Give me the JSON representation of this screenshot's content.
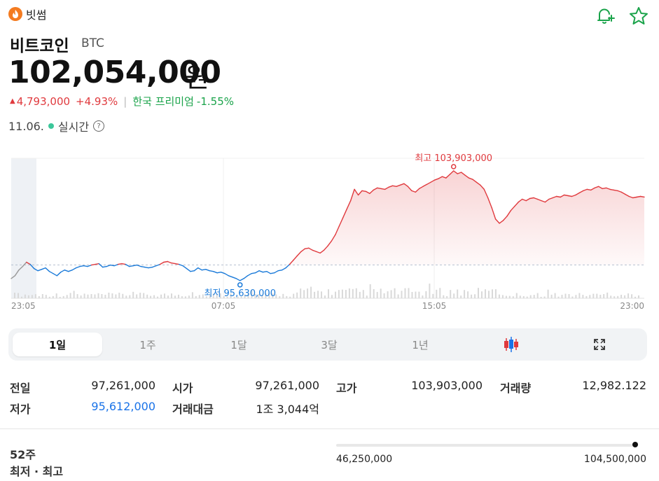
{
  "exchange": {
    "name": "빗썸",
    "logo_icon": "bithumb-flame-icon"
  },
  "coin": {
    "name": "비트코인",
    "symbol": "BTC"
  },
  "price": {
    "value": "102,054,000",
    "unit": "원"
  },
  "change": {
    "amount": "4,793,000",
    "percent": "+4.93%",
    "premium_label": "한국 프리미엄",
    "premium_value": "-1.55%"
  },
  "status": {
    "date": "11.06.",
    "realtime_label": "실시간",
    "help_icon": "?"
  },
  "chart_data": {
    "type": "line",
    "x_ticks": [
      "23:05",
      "07:05",
      "15:05",
      "23:00"
    ],
    "reference_price": 97261000,
    "high_label": "최고 103,903,000",
    "low_label": "최저 95,630,000",
    "high_value": 103903000,
    "low_value": 95630000,
    "up_color": "#e03a3e",
    "down_color": "#1a7ad9",
    "pre_color": "#999999",
    "prices": [
      96300000,
      96500000,
      96900000,
      97150000,
      97450000,
      97300000,
      97000000,
      96850000,
      96950000,
      97050000,
      96800000,
      96650000,
      96500000,
      96750000,
      96900000,
      96800000,
      96900000,
      97050000,
      97150000,
      97200000,
      97150000,
      97250000,
      97300000,
      97350000,
      97100000,
      97150000,
      97250000,
      97200000,
      97300000,
      97350000,
      97300000,
      97150000,
      97200000,
      97250000,
      97150000,
      97100000,
      97050000,
      97100000,
      97200000,
      97300000,
      97450000,
      97500000,
      97400000,
      97350000,
      97300000,
      97200000,
      97000000,
      96800000,
      96850000,
      97050000,
      96900000,
      96950000,
      96850000,
      96800000,
      96700000,
      96750000,
      96650000,
      96500000,
      96400000,
      96300000,
      96150000,
      96300000,
      96500000,
      96650000,
      96700000,
      96850000,
      96750000,
      96800000,
      96650000,
      96700000,
      96850000,
      96900000,
      97050000,
      97300000,
      97600000,
      97900000,
      98200000,
      98400000,
      98450000,
      98300000,
      98200000,
      98100000,
      98300000,
      98600000,
      98950000,
      99400000,
      100000000,
      100600000,
      101200000,
      101800000,
      102600000,
      102200000,
      102500000,
      102450000,
      102300000,
      102550000,
      102700000,
      102650000,
      102600000,
      102750000,
      102850000,
      102800000,
      102900000,
      103000000,
      102800000,
      102500000,
      102400000,
      102650000,
      102800000,
      102950000,
      103100000,
      103250000,
      103350000,
      103500000,
      103400000,
      103650000,
      103903000,
      103700000,
      103800000,
      103600000,
      103400000,
      103300000,
      103100000,
      102900000,
      102600000,
      102000000,
      101300000,
      100500000,
      100200000,
      100400000,
      100700000,
      101100000,
      101400000,
      101700000,
      101900000,
      101800000,
      101950000,
      102000000,
      101900000,
      101800000,
      101700000,
      101900000,
      102000000,
      102100000,
      102050000,
      102200000,
      102150000,
      102100000,
      102200000,
      102350000,
      102500000,
      102600000,
      102550000,
      102700000,
      102800000,
      102650000,
      102700000,
      102600000,
      102550000,
      102500000,
      102400000,
      102250000,
      102100000,
      102000000,
      102050000,
      102100000,
      102054000
    ],
    "pre_count": 4,
    "y_range": [
      95400000,
      104300000
    ]
  },
  "periods": {
    "tabs": [
      "1일",
      "1주",
      "1달",
      "3달",
      "1년"
    ],
    "active": "1일",
    "candle_icon": "candlestick-icon",
    "expand_icon": "expand-icon"
  },
  "stats": {
    "prev_close_label": "전일",
    "prev_close": "97,261,000",
    "open_label": "시가",
    "open": "97,261,000",
    "high_label": "고가",
    "high": "103,903,000",
    "volume_label": "거래량",
    "volume": "12,982.122",
    "low_label": "저가",
    "low": "95,612,000",
    "amount_label": "거래대금",
    "amount": "1조 3,044억"
  },
  "week52": {
    "label_1": "52주",
    "label_2": "최저 · 최고",
    "low": "46,250,000",
    "high": "104,500,000",
    "position_fraction": 0.99
  },
  "colors": {
    "up": "#e03a3e",
    "down": "#1a7ad9",
    "green": "#1aa34a",
    "live_dot": "#3cc79a"
  }
}
